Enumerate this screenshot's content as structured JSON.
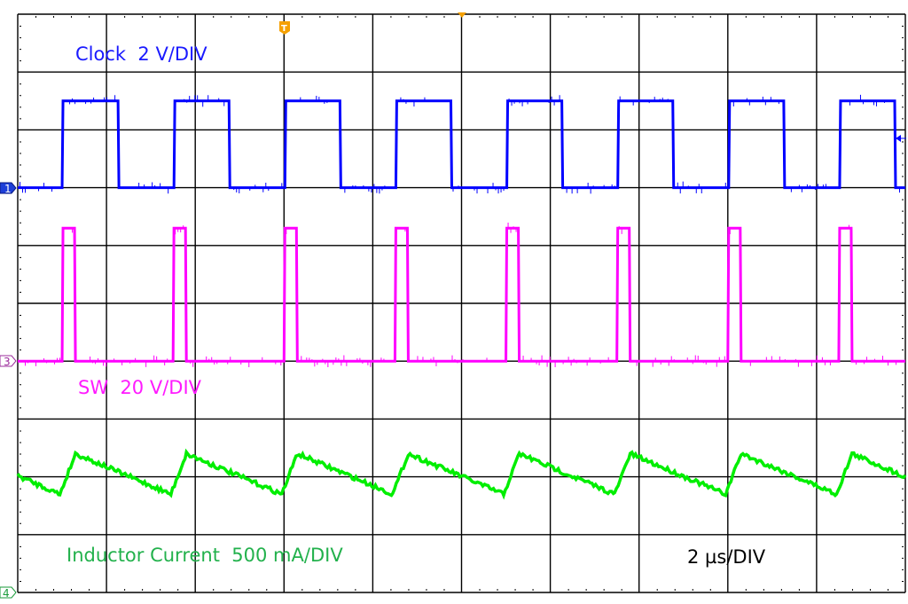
{
  "chart_data": {
    "type": "line",
    "title": "",
    "grid": true,
    "time_per_div_label": "2 µs/DIV",
    "x_range_us": [
      0,
      20
    ],
    "divisions": {
      "horizontal": 10,
      "vertical": 10
    },
    "series": [
      {
        "name": "Clock  2 V/DIV",
        "channel": "1",
        "color": "#0000ff",
        "volts_per_div": 2,
        "ground_div_from_top": 3,
        "low_V": 0,
        "high_V": 3.0,
        "rising_edges_us": [
          1.0,
          3.52,
          6.02,
          8.52,
          11.02,
          13.52,
          16.02,
          18.52
        ],
        "falling_edges_us": [
          2.26,
          4.76,
          7.26,
          9.76,
          12.26,
          14.76,
          17.26,
          19.76
        ]
      },
      {
        "name": "SW  20 V/DIV",
        "channel": "3",
        "color": "#ff00ff",
        "volts_per_div": 20,
        "ground_div_from_top": 6,
        "low_V": 0,
        "high_V": 46,
        "rising_edges_us": [
          1.0,
          3.5,
          6.0,
          8.5,
          11.0,
          13.5,
          16.0,
          18.5
        ],
        "falling_edges_us": [
          1.28,
          3.78,
          6.28,
          8.78,
          11.28,
          13.78,
          16.28,
          18.78
        ]
      },
      {
        "name": "Inductor Current  500 mA/DIV",
        "channel": "4",
        "color": "#00ee00",
        "label_color": "#22b14c",
        "amps_per_div": 0.5,
        "ground_div_from_top": 10,
        "start_A": 1.01,
        "valley_A": 0.85,
        "peak_A": 1.2,
        "valley_times_us": [
          0.95,
          3.45,
          5.95,
          8.45,
          10.95,
          13.45,
          15.95,
          18.45
        ],
        "peak_times_us": [
          1.3,
          3.8,
          6.3,
          8.8,
          11.3,
          13.8,
          16.3,
          18.8
        ],
        "end_A": 1.0
      }
    ],
    "trigger": {
      "marker": "T",
      "position_us": 6.0,
      "level_V": 1.7,
      "color": "#f5a000"
    }
  },
  "markers": {
    "ch1": "1",
    "ch3": "3",
    "ch4": "4",
    "trigger": "T"
  }
}
